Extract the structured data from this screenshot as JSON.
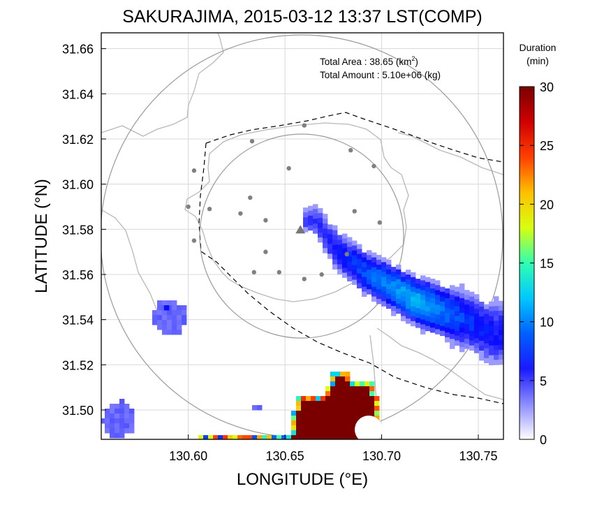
{
  "chart_data": {
    "type": "heatmap",
    "title": "SAKURAJIMA, 2015-03-12 13:37 LST(COMP)",
    "xlabel": "LONGITUDE (°E)",
    "ylabel": "LATITUDE (°N)",
    "xlim": [
      130.555,
      130.763
    ],
    "ylim": [
      31.487,
      31.667
    ],
    "xticks": [
      "130.60",
      "130.65",
      "130.70",
      "130.75"
    ],
    "xtick_values": [
      130.6,
      130.65,
      130.7,
      130.75
    ],
    "yticks": [
      "31.50",
      "31.52",
      "31.54",
      "31.56",
      "31.58",
      "31.60",
      "31.62",
      "31.64",
      "31.66"
    ],
    "ytick_values": [
      31.5,
      31.52,
      31.54,
      31.56,
      31.58,
      31.6,
      31.62,
      31.64,
      31.66
    ],
    "grid": true,
    "annotations": {
      "area_label": "Total Area   : 38.65 (km",
      "area_sup": "2",
      "area_close": ")",
      "amount_label": "Total Amount : 5.10e+06 (kg)"
    },
    "colorbar": {
      "title_line1": "Duration",
      "title_line2": "(min)",
      "min": 0,
      "max": 30,
      "ticks": [
        "0",
        "5",
        "10",
        "15",
        "20",
        "25",
        "30"
      ],
      "tick_values": [
        0,
        5,
        10,
        15,
        20,
        25,
        30
      ],
      "colors": [
        "#ffffff",
        "#6a6aff",
        "#0000ff",
        "#0080ff",
        "#00e5e5",
        "#55ff80",
        "#ffff00",
        "#ff9900",
        "#ff0000",
        "#8b0000"
      ]
    },
    "volcano": {
      "lon": 130.658,
      "lat": 31.58,
      "marker": "triangle",
      "color": "#777777"
    },
    "stations": [
      [
        130.66,
        31.626
      ],
      [
        130.633,
        31.619
      ],
      [
        130.684,
        31.615
      ],
      [
        130.603,
        31.606
      ],
      [
        130.652,
        31.607
      ],
      [
        130.696,
        31.608
      ],
      [
        130.6,
        31.59
      ],
      [
        130.611,
        31.589
      ],
      [
        130.686,
        31.588
      ],
      [
        130.632,
        31.594
      ],
      [
        130.627,
        31.587
      ],
      [
        130.64,
        31.584
      ],
      [
        130.699,
        31.583
      ],
      [
        130.603,
        31.575
      ],
      [
        130.64,
        31.57
      ],
      [
        130.682,
        31.569
      ],
      [
        130.634,
        31.561
      ],
      [
        130.647,
        31.561
      ],
      [
        130.66,
        31.558
      ],
      [
        130.669,
        31.56
      ]
    ],
    "deposit_duration_cells": {
      "plume_band_min": [
        [
          130.665,
          31.585,
          4
        ],
        [
          130.675,
          31.572,
          5
        ],
        [
          130.69,
          31.562,
          7
        ],
        [
          130.705,
          31.555,
          9
        ],
        [
          130.715,
          31.55,
          10
        ],
        [
          130.73,
          31.545,
          8
        ],
        [
          130.745,
          31.54,
          6
        ],
        [
          130.755,
          31.535,
          5
        ]
      ],
      "southern_core_min": 30
    }
  }
}
